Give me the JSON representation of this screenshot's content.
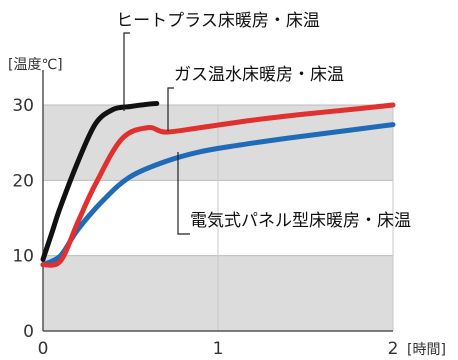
{
  "chart_data": {
    "type": "line",
    "ylabel": "[温度℃]",
    "xlabel": "[時間]",
    "xlim": [
      0,
      2
    ],
    "ylim": [
      0,
      30
    ],
    "x_ticks": [
      {
        "value": 0,
        "label": "0"
      },
      {
        "value": 1,
        "label": "1"
      },
      {
        "value": 2,
        "label": "2"
      }
    ],
    "y_ticks": [
      {
        "value": 0,
        "label": "0"
      },
      {
        "value": 10,
        "label": "10"
      },
      {
        "value": 20,
        "label": "20"
      },
      {
        "value": 30,
        "label": "30"
      }
    ],
    "grid": true,
    "series": [
      {
        "name": "ヒートプラス床暖房・床温",
        "color": "#111111",
        "points": [
          [
            0,
            9.5
          ],
          [
            0.05,
            13
          ],
          [
            0.1,
            16.5
          ],
          [
            0.2,
            22.5
          ],
          [
            0.3,
            27.5
          ],
          [
            0.4,
            29.4
          ],
          [
            0.5,
            29.8
          ],
          [
            0.6,
            30.1
          ],
          [
            0.65,
            30.2
          ]
        ]
      },
      {
        "name": "ガス温水床暖房・床温",
        "color": "#e03030",
        "points": [
          [
            0,
            8.8
          ],
          [
            0.1,
            9.3
          ],
          [
            0.2,
            14.5
          ],
          [
            0.3,
            19.5
          ],
          [
            0.45,
            25.5
          ],
          [
            0.6,
            27
          ],
          [
            0.7,
            26.4
          ],
          [
            0.9,
            27
          ],
          [
            1.2,
            28
          ],
          [
            1.5,
            28.8
          ],
          [
            1.8,
            29.5
          ],
          [
            2,
            30
          ]
        ]
      },
      {
        "name": "電気式パネル型床暖房・床温",
        "color": "#1f6bb8",
        "points": [
          [
            0,
            8.8
          ],
          [
            0.1,
            10
          ],
          [
            0.2,
            13.5
          ],
          [
            0.35,
            17.5
          ],
          [
            0.5,
            20.5
          ],
          [
            0.7,
            22.5
          ],
          [
            0.9,
            23.8
          ],
          [
            1.1,
            24.6
          ],
          [
            1.4,
            25.6
          ],
          [
            1.7,
            26.5
          ],
          [
            2,
            27.4
          ]
        ]
      }
    ]
  }
}
